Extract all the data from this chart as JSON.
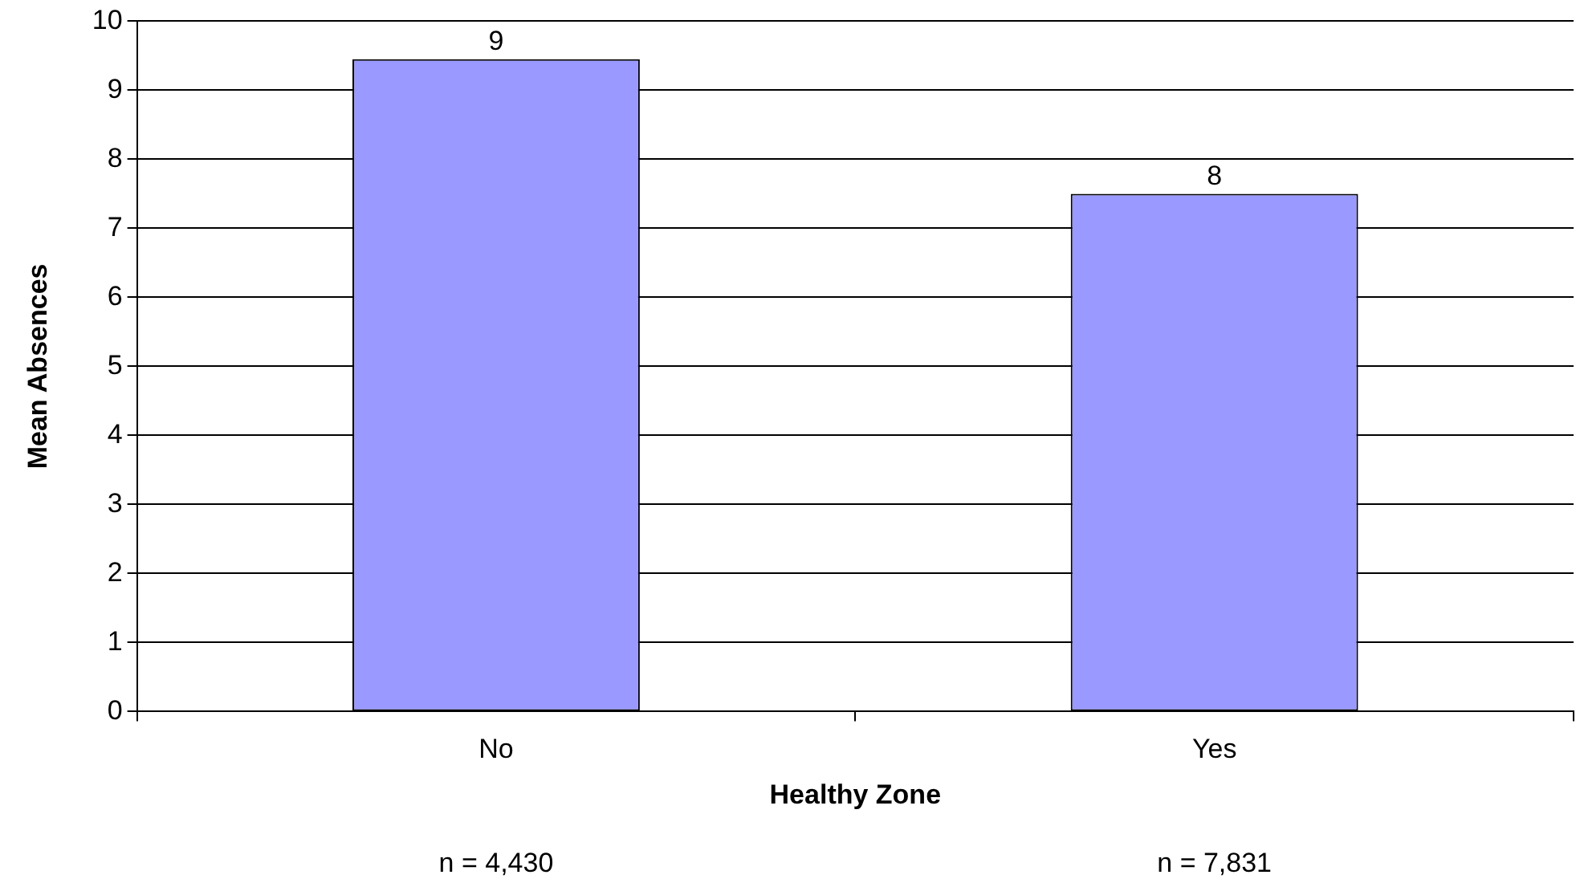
{
  "chart_data": {
    "type": "bar",
    "xlabel": "Healthy Zone",
    "ylabel": "Mean Absences",
    "categories": [
      "No",
      "Yes"
    ],
    "values": [
      9.45,
      7.5
    ],
    "value_labels": [
      "9",
      "8"
    ],
    "color": "#9999ff",
    "ylim": [
      0,
      10
    ],
    "yticks": [
      0,
      1,
      2,
      3,
      4,
      5,
      6,
      7,
      8,
      9,
      10
    ],
    "grid": "y",
    "legend": false,
    "annotations": [
      "n = 4,430",
      "n = 7,831"
    ]
  }
}
